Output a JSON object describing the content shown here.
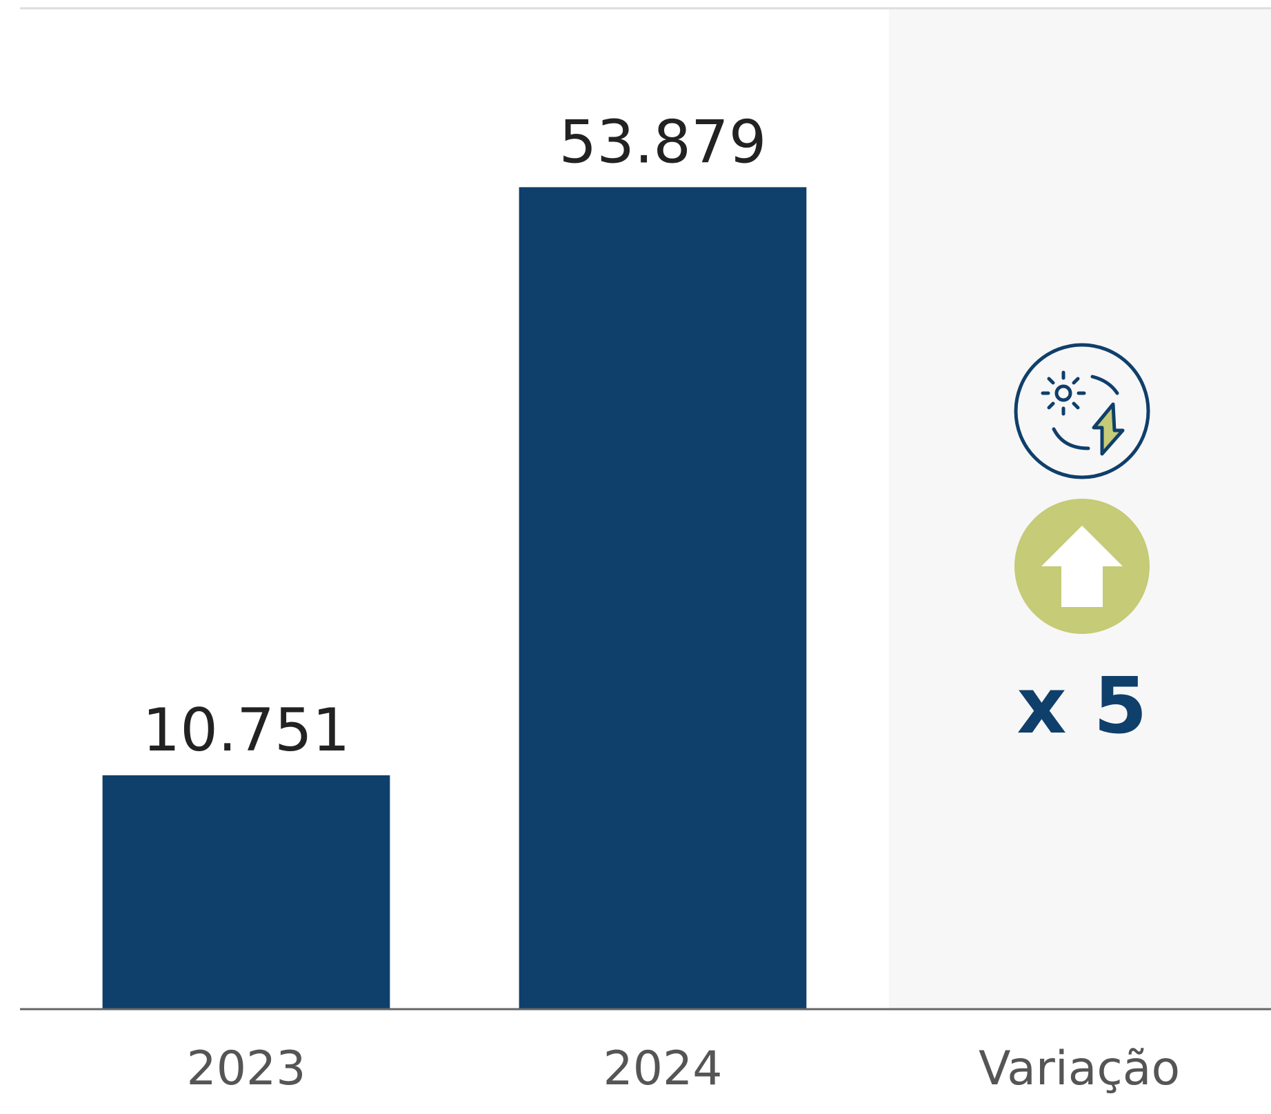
{
  "chart_data": {
    "type": "bar",
    "categories": [
      "2023",
      "2024",
      "Variação"
    ],
    "values": [
      10751,
      53879,
      null
    ],
    "value_labels": [
      "10.751",
      "53.879",
      null
    ],
    "color": "#0f3f6b",
    "ylim": [
      -6400,
      67000
    ],
    "annotation": "x 5"
  }
}
